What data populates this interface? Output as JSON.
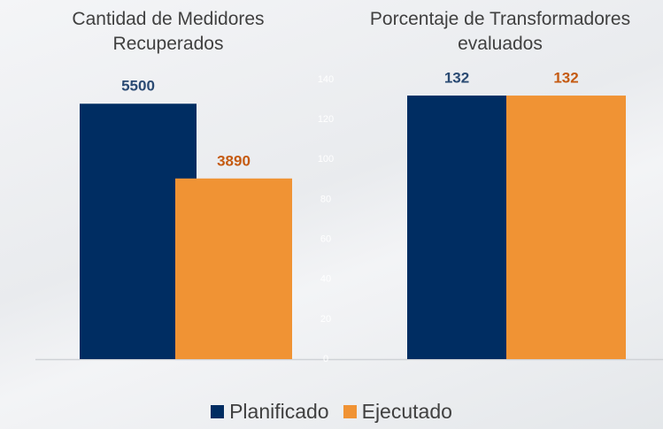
{
  "chart_data": [
    {
      "type": "bar",
      "title": "Cantidad de Medidores Recuperados",
      "series": [
        {
          "name": "Planificado",
          "color": "#002d62",
          "values": [
            5500
          ]
        },
        {
          "name": "Ejecutado",
          "color": "#f09334",
          "values": [
            3890
          ]
        }
      ],
      "ylim": [
        0,
        6000
      ]
    },
    {
      "type": "bar",
      "title": "Porcentaje de Transformadores evaluados",
      "series": [
        {
          "color": "#002d62",
          "values": [
            132
          ]
        },
        {
          "color": "#f09334",
          "values": [
            132
          ]
        }
      ],
      "ylim": [
        0,
        140
      ],
      "yticks": [
        0,
        20,
        40,
        60,
        80,
        100,
        120,
        140
      ]
    }
  ]
}
